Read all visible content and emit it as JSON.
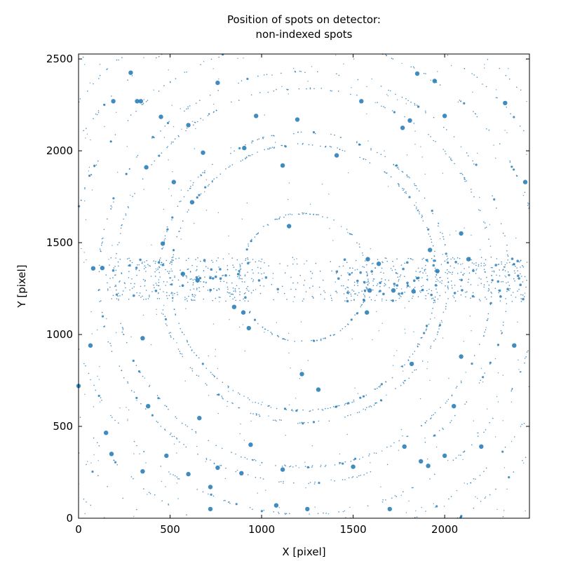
{
  "chart_data": {
    "type": "scatter",
    "title": [
      "Position of spots on detector:",
      "non-indexed spots"
    ],
    "xlabel": "X [pixel]",
    "ylabel": "Y [pixel]",
    "xlim": [
      0,
      2463
    ],
    "ylim": [
      0,
      2527
    ],
    "xticks": [
      0,
      500,
      1000,
      1500,
      2000
    ],
    "yticks": [
      0,
      500,
      1000,
      1500,
      2000,
      2500
    ],
    "xtick_labels": [
      "0",
      "500",
      "1000",
      "1500",
      "2000"
    ],
    "ytick_labels": [
      "0",
      "500",
      "1000",
      "1500",
      "2000",
      "2500"
    ],
    "grid": false,
    "legend": "none",
    "marker_color": "#1f77b4",
    "beam_center": [
      1230,
      1310
    ],
    "rings": [
      {
        "radius": 350,
        "count": 140
      },
      {
        "radius": 725,
        "count": 260
      },
      {
        "radius": 790,
        "count": 220
      },
      {
        "radius": 1030,
        "count": 240
      },
      {
        "radius": 1120,
        "count": 200
      },
      {
        "radius": 1290,
        "count": 220
      },
      {
        "radius": 1440,
        "count": 220
      },
      {
        "radius": 1560,
        "count": 200
      },
      {
        "radius": 1700,
        "count": 180
      }
    ],
    "large_spots": [
      [
        80,
        1360
      ],
      [
        130,
        1362
      ],
      [
        285,
        2425
      ],
      [
        190,
        2270
      ],
      [
        320,
        2270
      ],
      [
        340,
        2270
      ],
      [
        370,
        1910
      ],
      [
        450,
        2185
      ],
      [
        520,
        1830
      ],
      [
        600,
        2140
      ],
      [
        620,
        1720
      ],
      [
        680,
        1990
      ],
      [
        760,
        2370
      ],
      [
        905,
        2015
      ],
      [
        970,
        2190
      ],
      [
        1115,
        1920
      ],
      [
        1195,
        2170
      ],
      [
        1150,
        1590
      ],
      [
        1410,
        1975
      ],
      [
        1545,
        2270
      ],
      [
        1770,
        2125
      ],
      [
        1810,
        2165
      ],
      [
        1850,
        2420
      ],
      [
        1945,
        2380
      ],
      [
        2000,
        2190
      ],
      [
        2090,
        1550
      ],
      [
        2440,
        1830
      ],
      [
        2330,
        2260
      ],
      [
        0,
        720
      ],
      [
        65,
        940
      ],
      [
        150,
        465
      ],
      [
        180,
        350
      ],
      [
        350,
        255
      ],
      [
        380,
        610
      ],
      [
        480,
        340
      ],
      [
        600,
        240
      ],
      [
        660,
        545
      ],
      [
        760,
        275
      ],
      [
        890,
        245
      ],
      [
        940,
        400
      ],
      [
        1115,
        265
      ],
      [
        1220,
        785
      ],
      [
        1250,
        50
      ],
      [
        1310,
        700
      ],
      [
        1500,
        280
      ],
      [
        1700,
        50
      ],
      [
        1780,
        390
      ],
      [
        1870,
        310
      ],
      [
        1910,
        285
      ],
      [
        2000,
        340
      ],
      [
        2050,
        610
      ],
      [
        2200,
        390
      ],
      [
        2380,
        940
      ],
      [
        720,
        50
      ],
      [
        720,
        170
      ],
      [
        460,
        1495
      ],
      [
        1920,
        1460
      ],
      [
        1580,
        1410
      ],
      [
        1640,
        1385
      ],
      [
        570,
        1330
      ],
      [
        650,
        1295
      ],
      [
        1575,
        1120
      ],
      [
        1590,
        1240
      ],
      [
        1720,
        1240
      ],
      [
        1830,
        1235
      ],
      [
        1960,
        1345
      ],
      [
        850,
        1150
      ],
      [
        900,
        1120
      ],
      [
        930,
        1035
      ],
      [
        350,
        980
      ],
      [
        1080,
        70
      ],
      [
        2130,
        1410
      ],
      [
        2090,
        880
      ],
      [
        1820,
        840
      ]
    ]
  }
}
